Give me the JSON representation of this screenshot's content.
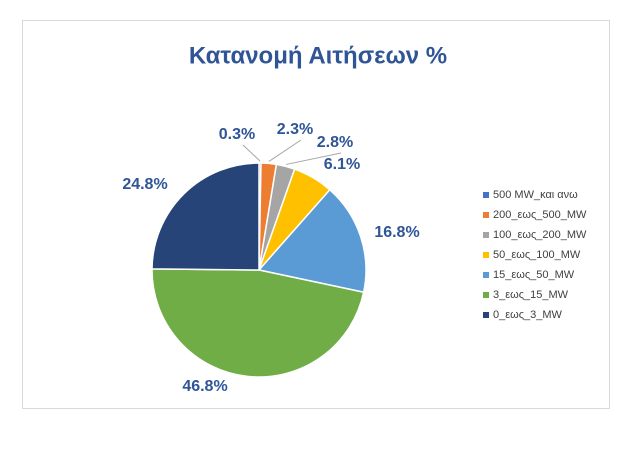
{
  "chart_data": {
    "type": "pie",
    "title": "Κατανομή Αιτήσεων %",
    "categories": [
      "500 MW_και ανω",
      "200_εως_500_MW",
      "100_εως_200_MW",
      "50_εως_100_MW",
      "15_εως_50_MW",
      "3_εως_15_MW",
      "0_εως_3_MW"
    ],
    "values": [
      0.3,
      2.3,
      2.8,
      6.1,
      16.8,
      46.8,
      24.8
    ],
    "value_labels": [
      "0.3%",
      "2.3%",
      "2.8%",
      "6.1%",
      "16.8%",
      "46.8%",
      "24.8%"
    ],
    "colors": [
      "#4472c4",
      "#ed7d31",
      "#a5a5a5",
      "#ffc000",
      "#5b9bd5",
      "#70ad47",
      "#264478"
    ],
    "legend": "right"
  }
}
